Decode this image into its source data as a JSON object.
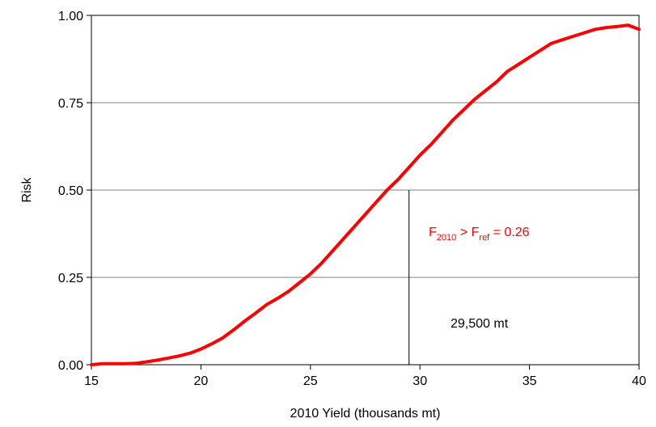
{
  "chart_data": {
    "type": "line",
    "title": "",
    "xlabel": "2010 Yield (thousands mt)",
    "ylabel": "Risk",
    "xlim": [
      15,
      40
    ],
    "ylim": [
      0,
      1
    ],
    "x_ticks": [
      15,
      20,
      25,
      30,
      35,
      40
    ],
    "y_ticks": [
      0,
      0.25,
      0.5,
      0.75,
      1
    ],
    "x_tick_labels": [
      "15",
      "20",
      "25",
      "30",
      "35",
      "40"
    ],
    "y_tick_labels": [
      "0.00",
      "0.25",
      "0.50",
      "0.75",
      "1.00"
    ],
    "grid": "horizontal",
    "legend": "none",
    "series": [
      {
        "color": "#ff0000",
        "x": [
          15,
          15.5,
          16,
          16.5,
          17,
          17.5,
          18,
          18.5,
          19,
          19.5,
          20,
          20.5,
          21,
          21.5,
          22,
          22.5,
          23,
          23.5,
          24,
          24.5,
          25,
          25.5,
          26,
          26.5,
          27,
          27.5,
          28,
          28.5,
          29,
          29.5,
          30,
          30.5,
          31,
          31.5,
          32,
          32.5,
          33,
          33.5,
          34,
          34.5,
          35,
          35.5,
          36,
          36.5,
          37,
          37.5,
          38,
          38.5,
          39,
          39.5,
          40
        ],
        "y": [
          0.0,
          0.003,
          0.003,
          0.003,
          0.004,
          0.008,
          0.013,
          0.019,
          0.025,
          0.033,
          0.045,
          0.06,
          0.077,
          0.1,
          0.125,
          0.148,
          0.172,
          0.19,
          0.21,
          0.235,
          0.26,
          0.29,
          0.325,
          0.36,
          0.395,
          0.43,
          0.465,
          0.5,
          0.53,
          0.565,
          0.6,
          0.63,
          0.665,
          0.7,
          0.73,
          0.76,
          0.785,
          0.81,
          0.84,
          0.86,
          0.88,
          0.9,
          0.92,
          0.93,
          0.94,
          0.95,
          0.96,
          0.965,
          0.968,
          0.972,
          0.96
        ]
      }
    ],
    "annotations": {
      "vline_x": 29.5,
      "vline_y_top": 0.5,
      "vline_label": "29,500 mt",
      "condition": {
        "base": "F",
        "sub1": "2010",
        "middle": " > F",
        "sub2": "ref",
        "tail": " = 0.26",
        "color": "#ff0000"
      }
    }
  }
}
